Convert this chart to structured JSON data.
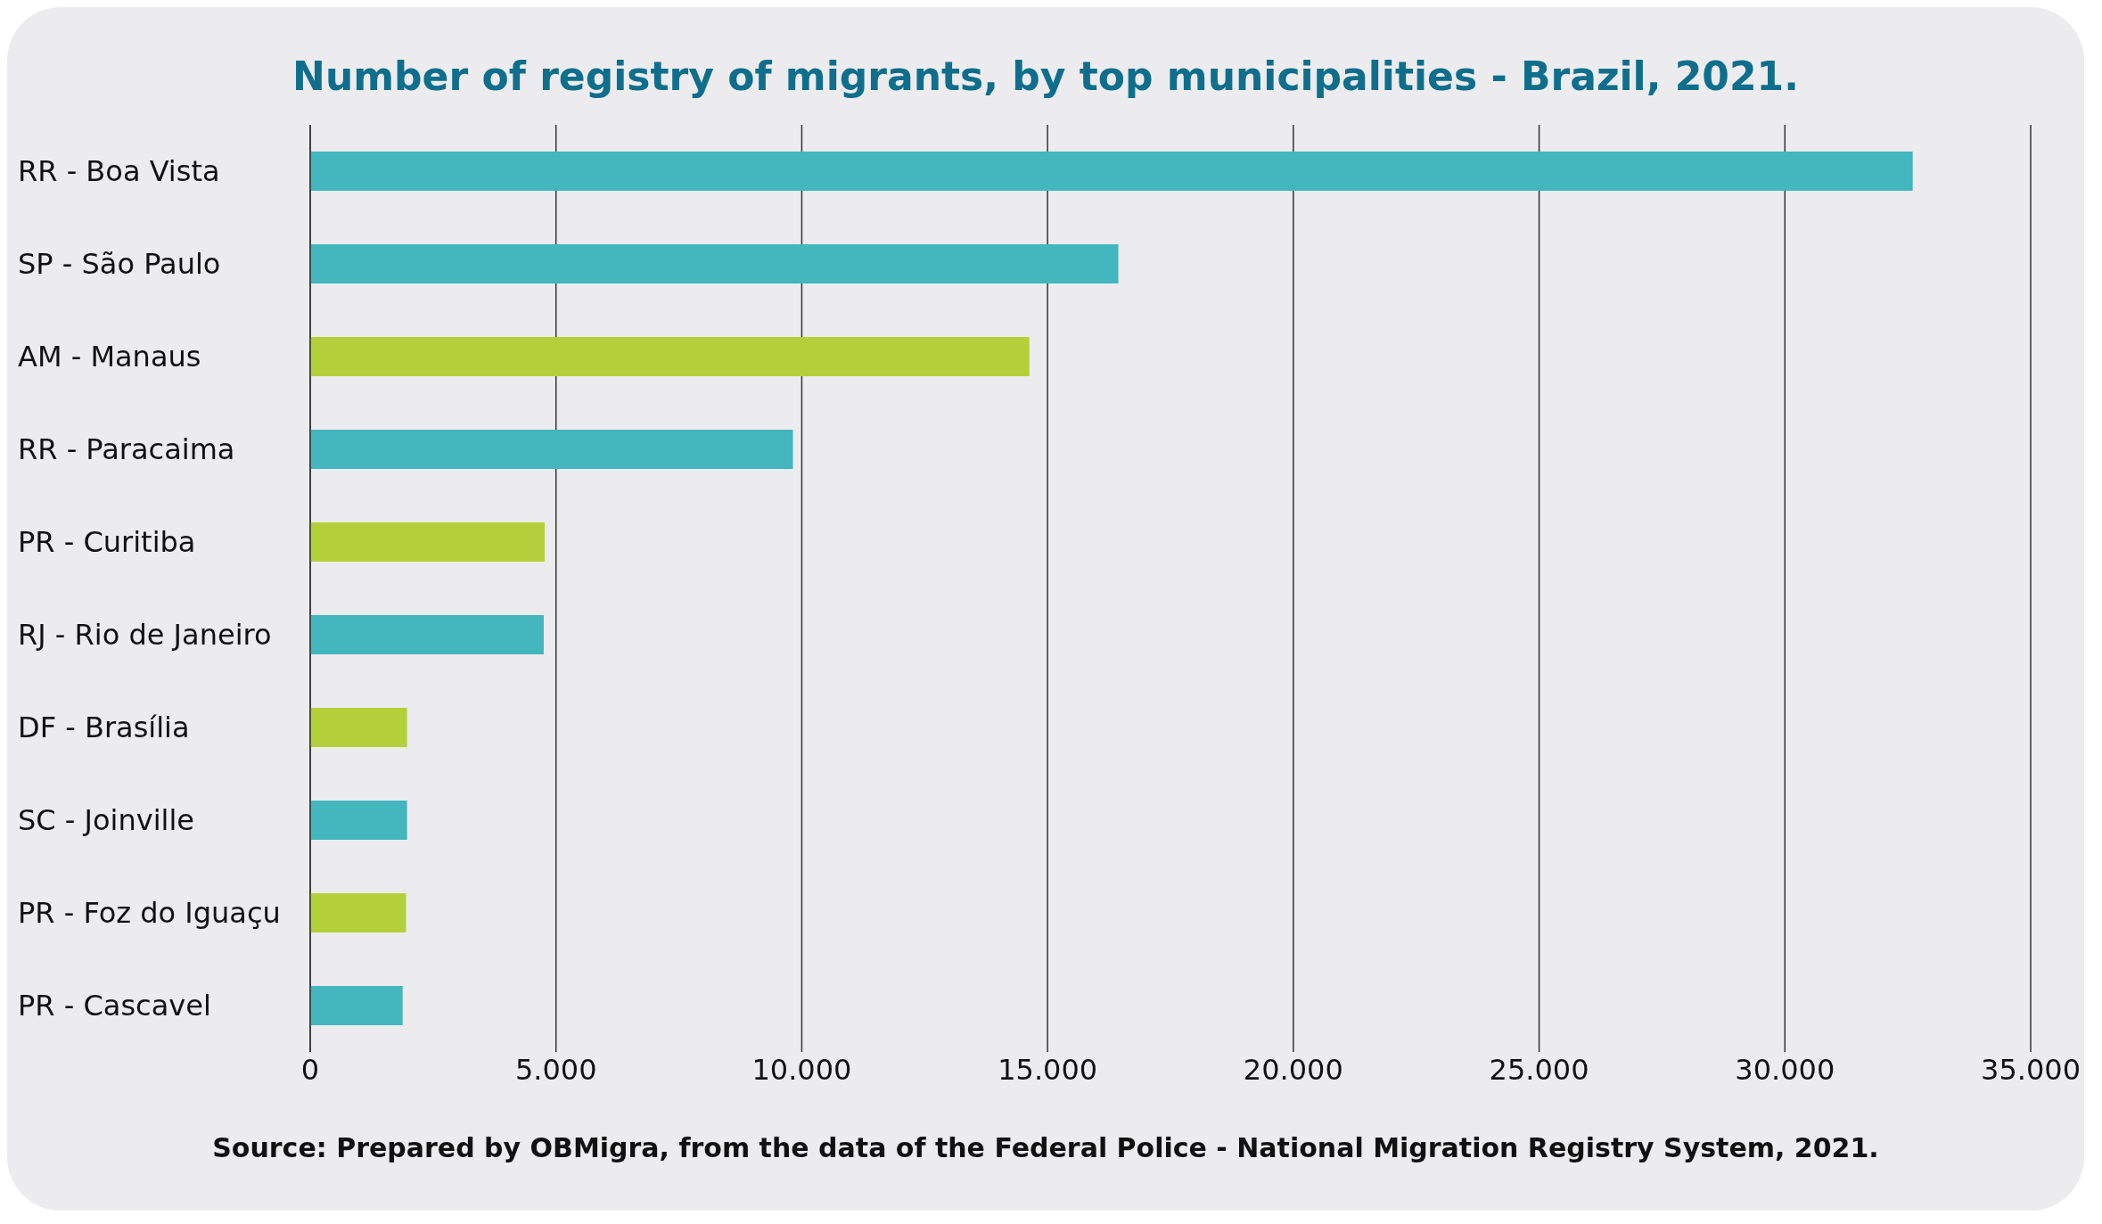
{
  "chart_data": {
    "type": "bar",
    "orientation": "horizontal",
    "title": "Number of registry of migrants, by top municipalities - Brazil, 2021.",
    "categories": [
      "RR - Boa Vista",
      "SP - São Paulo",
      "AM - Manaus",
      "RR - Paracaima",
      "PR - Curitiba",
      "RJ - Rio de Janeiro",
      "DF - Brasília",
      "SC - Joinville",
      "PR - Foz do Iguaçu",
      "PR - Cascavel"
    ],
    "values": [
      32600,
      16440,
      14630,
      9820,
      4770,
      4750,
      1970,
      1970,
      1950,
      1880
    ],
    "colors": [
      "#43b6be",
      "#43b6be",
      "#b5cf3b",
      "#43b6be",
      "#b5cf3b",
      "#43b6be",
      "#b5cf3b",
      "#43b6be",
      "#b5cf3b",
      "#43b6be"
    ],
    "xlim": [
      0,
      35000
    ],
    "xticks": [
      {
        "value": 0,
        "label": "0"
      },
      {
        "value": 5000,
        "label": "5.000"
      },
      {
        "value": 10000,
        "label": "10.000"
      },
      {
        "value": 15000,
        "label": "15.000"
      },
      {
        "value": 20000,
        "label": "20.000"
      },
      {
        "value": 25000,
        "label": "25.000"
      },
      {
        "value": 30000,
        "label": "30.000"
      },
      {
        "value": 35000,
        "label": "35.000"
      }
    ],
    "grid": "x",
    "legend": false,
    "annotations": [
      "Source: Prepared by OBMigra, from the data of the Federal Police - National Migration Registry System, 2021."
    ]
  }
}
